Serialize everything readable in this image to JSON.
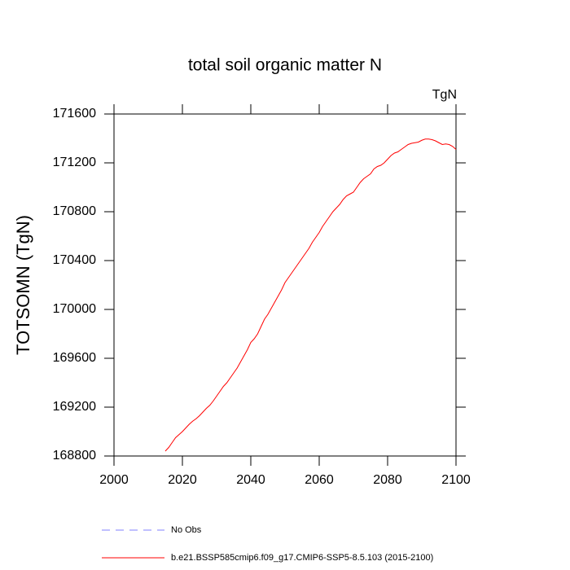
{
  "chart_data": {
    "type": "line",
    "title": "total soil organic matter N",
    "unit_label": "TgN",
    "y_label": "TOTSOMN  (TgN)",
    "x": [
      2015,
      2016,
      2017,
      2018,
      2019,
      2020,
      2021,
      2022,
      2023,
      2024,
      2025,
      2026,
      2027,
      2028,
      2029,
      2030,
      2031,
      2032,
      2033,
      2034,
      2035,
      2036,
      2037,
      2038,
      2039,
      2040,
      2041,
      2042,
      2043,
      2044,
      2045,
      2046,
      2047,
      2048,
      2049,
      2050,
      2051,
      2052,
      2053,
      2054,
      2055,
      2056,
      2057,
      2058,
      2059,
      2060,
      2061,
      2062,
      2063,
      2064,
      2065,
      2066,
      2067,
      2068,
      2069,
      2070,
      2071,
      2072,
      2073,
      2074,
      2075,
      2076,
      2077,
      2078,
      2079,
      2080,
      2081,
      2082,
      2083,
      2084,
      2085,
      2086,
      2087,
      2088,
      2089,
      2090,
      2091,
      2092,
      2093,
      2094,
      2095,
      2096,
      2097,
      2098,
      2099,
      2100
    ],
    "series": [
      {
        "name": "b.e21.BSSP585cmip6.f09_g17.CMIP6-SSP5-8.5.103 (2015-2100)",
        "color": "#ff0000",
        "values": [
          168840,
          168870,
          168910,
          168950,
          168975,
          169000,
          169030,
          169060,
          169085,
          169105,
          169130,
          169160,
          169190,
          169215,
          169250,
          169290,
          169330,
          169370,
          169400,
          169440,
          169480,
          169520,
          169570,
          169620,
          169670,
          169730,
          169760,
          169800,
          169860,
          169920,
          169960,
          170010,
          170060,
          170110,
          170160,
          170220,
          170260,
          170300,
          170340,
          170380,
          170420,
          170460,
          170500,
          170550,
          170590,
          170630,
          170680,
          170720,
          170760,
          170800,
          170830,
          170860,
          170900,
          170930,
          170945,
          170960,
          171000,
          171040,
          171070,
          171090,
          171110,
          171150,
          171170,
          171180,
          171200,
          171230,
          171260,
          171280,
          171290,
          171310,
          171330,
          171350,
          171360,
          171365,
          171370,
          171385,
          171395,
          171395,
          171390,
          171380,
          171365,
          171350,
          171355,
          171350,
          171335,
          171310
        ]
      }
    ],
    "legend_extra": [
      {
        "name": "No Obs",
        "color": "#8080ff",
        "dashed": true
      }
    ],
    "xlim": [
      2000,
      2100
    ],
    "xticks": [
      2000,
      2020,
      2040,
      2060,
      2080,
      2100
    ],
    "ylim": [
      168800,
      171600
    ],
    "yticks": [
      168800,
      169200,
      169600,
      170000,
      170400,
      170800,
      171200,
      171600
    ]
  }
}
